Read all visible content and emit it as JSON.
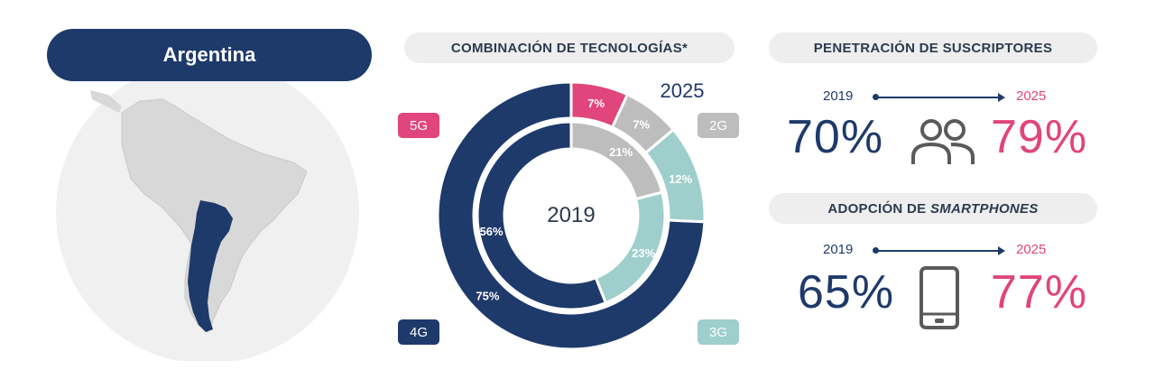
{
  "country": "Argentina",
  "colors": {
    "navy": "#1e3a6b",
    "pink": "#e0457b",
    "gray": "#bdbdbd",
    "teal": "#9ecfcc",
    "map_land": "#d8d8d8",
    "map_circle": "#f0f0f0"
  },
  "technology_mix": {
    "title": "COMBINACIÓN DE TECNOLOGÍAS*",
    "legend": {
      "g5": "5G",
      "g4": "4G",
      "g2": "2G",
      "g3": "3G"
    }
  },
  "subscriber_penetration": {
    "title": "PENETRACIÓN DE SUSCRIPTORES",
    "start_year": "2019",
    "end_year": "2025",
    "start_value": "70%",
    "end_value": "79%",
    "icon": "people-icon"
  },
  "smartphone_adoption": {
    "title_prefix": "ADOPCIÓN DE ",
    "title_emph": "SMARTPHONES",
    "start_year": "2019",
    "end_year": "2025",
    "start_value": "65%",
    "end_value": "77%",
    "icon": "smartphone-icon"
  },
  "chart_data": {
    "type": "pie",
    "title": "",
    "series": [
      {
        "name": "2025",
        "categories": [
          "5G",
          "2G",
          "3G",
          "4G"
        ],
        "values": [
          7,
          7,
          12,
          75
        ],
        "colors": [
          "#e0457b",
          "#bdbdbd",
          "#9ecfcc",
          "#1e3a6b"
        ],
        "labels": [
          "7%",
          "7%",
          "12%",
          "75%"
        ]
      },
      {
        "name": "2019",
        "categories": [
          "2G",
          "3G",
          "4G"
        ],
        "values": [
          21,
          23,
          56
        ],
        "colors": [
          "#bdbdbd",
          "#9ecfcc",
          "#1e3a6b"
        ],
        "labels": [
          "21%",
          "23%",
          "56%"
        ]
      }
    ]
  }
}
